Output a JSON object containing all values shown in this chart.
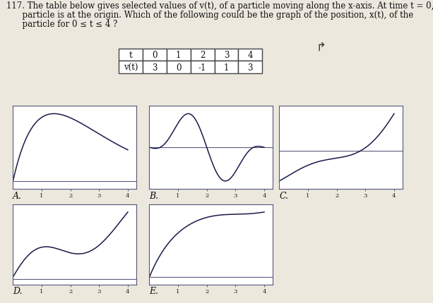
{
  "title_line1": "117. The table below gives selected values of v(t), of a particle moving along the x-axis. At time t = 0, the",
  "title_line2": "      particle is at the origin. Which of the following could be the graph of the position, x(t), of the",
  "title_line3": "      particle for 0 ≤ t ≤ 4 ?",
  "table_t": [
    "t",
    "0",
    "1",
    "2",
    "3",
    "4"
  ],
  "table_v": [
    "v(t)",
    "3",
    "0",
    "-1",
    "1",
    "3"
  ],
  "labels": [
    "A.",
    "B.",
    "C.",
    "D.",
    "E."
  ],
  "background": "#ece8de",
  "line_color": "#1a1a4a",
  "box_color": "#555577",
  "text_color": "#111111",
  "font_size_title": 8.5,
  "font_size_label": 9,
  "font_size_tick": 6
}
